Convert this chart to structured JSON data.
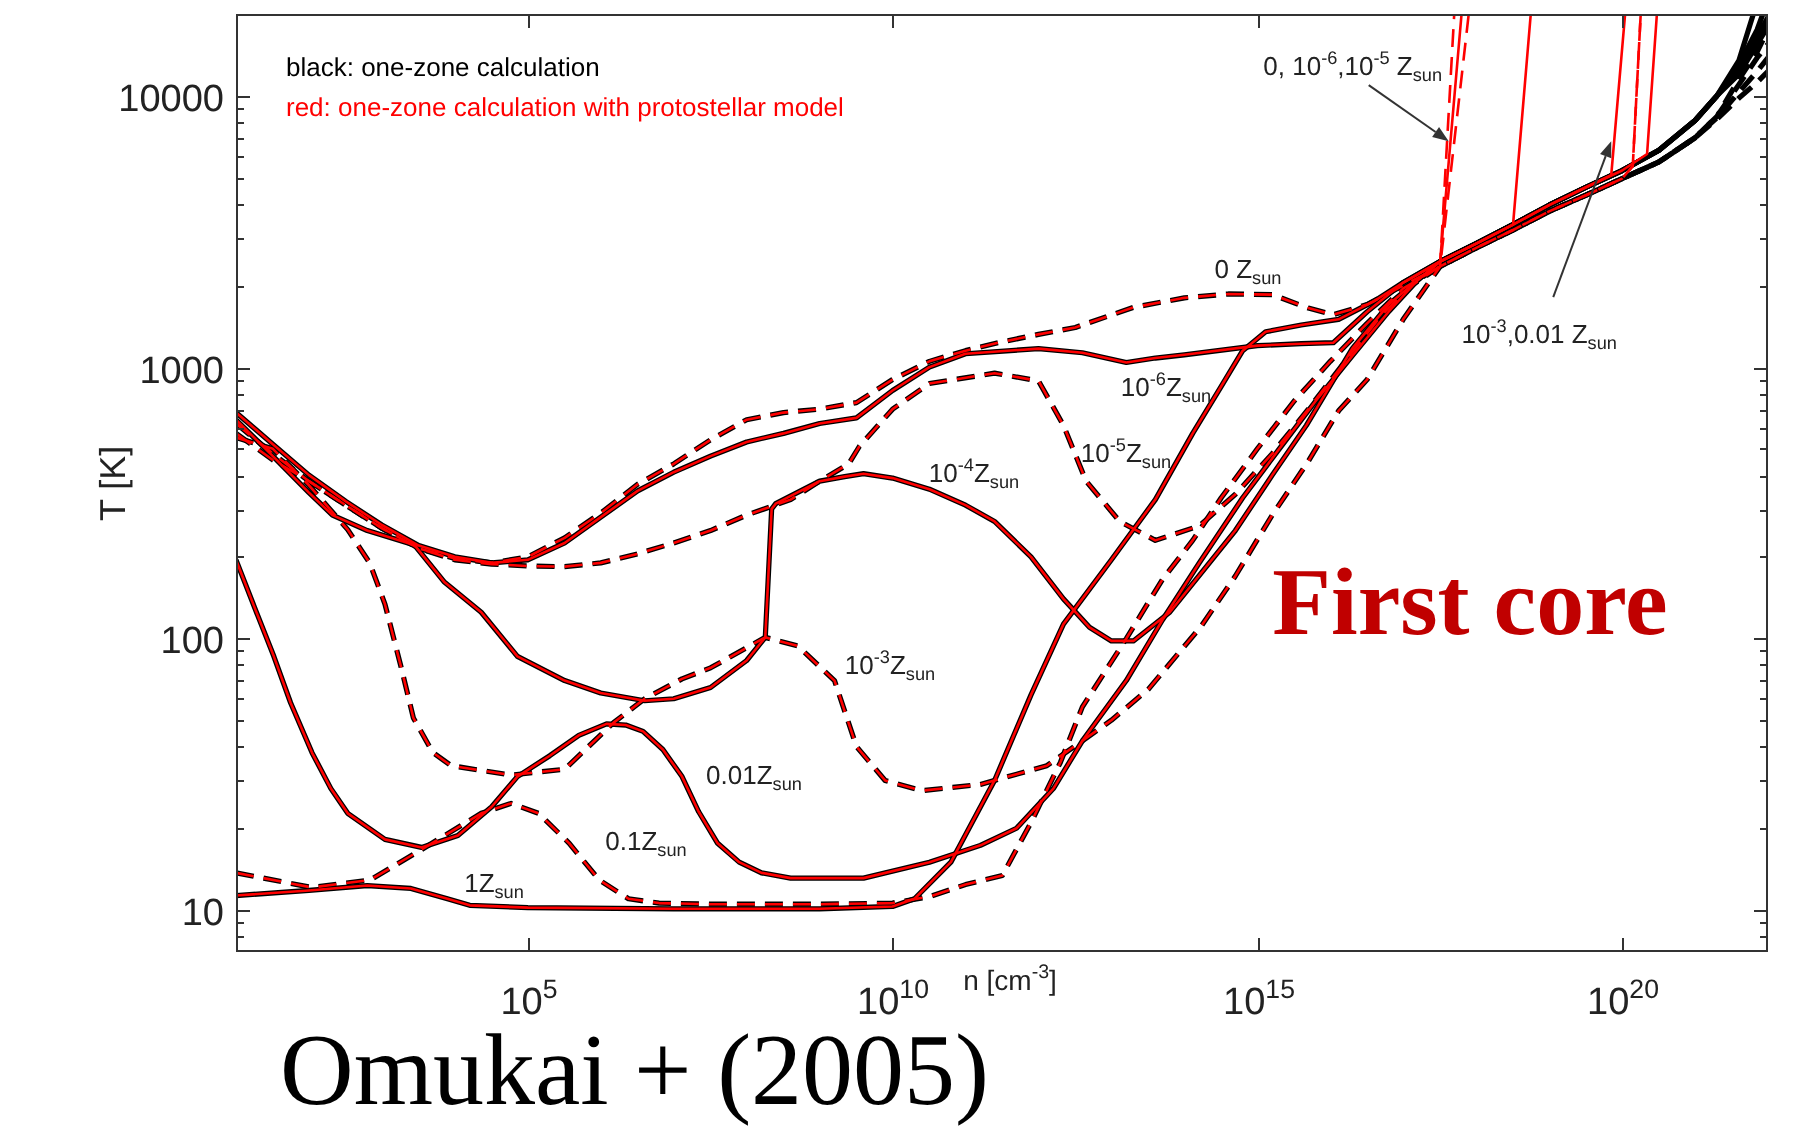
{
  "chart_data": {
    "type": "line",
    "xlabel": "n [cm$^{-3}$]",
    "ylabel": "T [K]",
    "log": "xy",
    "xlim": [
      10,
      1e+22
    ],
    "ylim": [
      7,
      20000
    ],
    "xticks": [
      {
        "value": 100000.0,
        "label": "10$^{5}$"
      },
      {
        "value": 10000000000.0,
        "label": "10$^{10}$"
      },
      {
        "value": 1000000000000000.0,
        "label": "10$^{15}$"
      },
      {
        "value": 1e+20,
        "label": "10$^{20}$"
      }
    ],
    "yticks": [
      {
        "value": 8,
        "label": null
      },
      {
        "value": 9,
        "label": null
      },
      10,
      {
        "value": 20,
        "label": null
      },
      {
        "value": 30,
        "label": null
      },
      {
        "value": 40,
        "label": null
      },
      {
        "value": 50,
        "label": null
      },
      {
        "value": 60,
        "label": null
      },
      {
        "value": 70,
        "label": null
      },
      {
        "value": 80,
        "label": null
      },
      {
        "value": 90,
        "label": null
      },
      100,
      {
        "value": 200,
        "label": null
      },
      {
        "value": 300,
        "label": null
      },
      {
        "value": 400,
        "label": null
      },
      {
        "value": 500,
        "label": null
      },
      {
        "value": 600,
        "label": null
      },
      {
        "value": 700,
        "label": null
      },
      {
        "value": 800,
        "label": null
      },
      {
        "value": 900,
        "label": null
      },
      1000,
      {
        "value": 2000,
        "label": null
      },
      {
        "value": 3000,
        "label": null
      },
      {
        "value": 4000,
        "label": null
      },
      {
        "value": 5000,
        "label": null
      },
      {
        "value": 6000,
        "label": null
      },
      {
        "value": 7000,
        "label": null
      },
      {
        "value": 8000,
        "label": null
      },
      {
        "value": 9000,
        "label": null
      },
      10000
    ],
    "series": [
      {
        "color": "#ff0000",
        "line_style": "dashed",
        "x": [
          10,
          32,
          100,
          320,
          1000,
          3200,
          10000,
          32000,
          100000,
          320000,
          1000000.0,
          3200000.0,
          10000000.0,
          32000000.0,
          100000000.0,
          320000000.0,
          1000000000.0,
          3200000000.0,
          10000000000.0,
          32000000000.0,
          100000000000.0,
          320000000000.0,
          1000000000000.0,
          3200000000000.0,
          20000000000000.0,
          100000000000000.0,
          400000000000000.0,
          1600000000000000.0,
          5000000000000000.0,
          1.1e+16,
          3.2e+16,
          1e+17,
          3.2e+17,
          5e+17
        ],
        "values": [
          620,
          480,
          380,
          310,
          255,
          215,
          197,
          190,
          200,
          235,
          290,
          370,
          440,
          540,
          640,
          680,
          700,
          740,
          900,
          1050,
          1150,
          1240,
          1320,
          1400,
          1660,
          1800,
          1860,
          1850,
          1650,
          1560,
          1700,
          2000,
          2350,
          20000
        ]
      },
      {
        "color": "#ff0000",
        "line_style": "solid",
        "x": [
          10,
          32,
          100,
          320,
          1000,
          3200,
          10000,
          32000,
          100000,
          320000,
          1000000.0,
          3200000.0,
          10000000.0,
          32000000.0,
          100000000.0,
          320000000.0,
          1000000000.0,
          3200000000.0,
          10000000000.0,
          32000000000.0,
          100000000000.0,
          1000000000000.0,
          4000000000000.0,
          16000000000000.0,
          40000000000000.0,
          100000000000000.0,
          1000000000000000.0,
          4000000000000000.0,
          1.1e+16,
          3.2e+16,
          1e+17,
          3.2e+17,
          6.3e+17
        ],
        "values": [
          680,
          520,
          400,
          320,
          262,
          220,
          200,
          190,
          195,
          225,
          280,
          350,
          410,
          470,
          530,
          570,
          620,
          650,
          820,
          1000,
          1120,
          1170,
          1130,
          1040,
          1080,
          1110,
          1200,
          1220,
          1230,
          1600,
          2050,
          2450,
          20000
        ]
      },
      {
        "color": "#ff0000",
        "line_style": "dashed",
        "x": [
          10,
          32,
          100,
          320,
          1000,
          3200,
          10000,
          32000,
          100000,
          320000,
          1000000.0,
          3200000.0,
          10000000.0,
          32000000.0,
          100000000.0,
          400000000.0,
          1000000000.0,
          2500000000.0,
          3500000000.0,
          10000000000.0,
          32000000000.0,
          250000000000.0,
          1000000000000.0,
          2200000000000.0,
          4500000000000.0,
          13000000000000.0,
          40000000000000.0,
          160000000000000.0,
          500000000000000.0,
          1600000000000000.0,
          5000000000000000.0,
          1.6e+16,
          5e+16,
          1.3e+17,
          3.2e+17,
          7.9e+17
        ],
        "values": [
          570,
          455,
          380,
          310,
          255,
          215,
          195,
          188,
          185,
          184,
          190,
          205,
          225,
          250,
          285,
          325,
          380,
          440,
          510,
          700,
          870,
          950,
          890,
          610,
          380,
          270,
          230,
          260,
          340,
          480,
          700,
          1050,
          1550,
          2000,
          2350,
          20000
        ]
      },
      {
        "color": "#ff0000",
        "line_style": "solid",
        "x": [
          10,
          32,
          100,
          210,
          630,
          2800,
          7100,
          23000,
          72000,
          320000,
          1000000.0,
          4000000.0,
          10000000.0,
          32000000.0,
          100000000.0,
          180000000.0,
          220000000.0,
          250000000.0,
          1000000000.0,
          2200000000.0,
          4000000000.0,
          10000000000.0,
          32000000000.0,
          100000000000.0,
          250000000000.0,
          790000000000.0,
          2200000000000.0,
          5000000000000.0,
          10000000000000.0,
          20000000000000.0,
          63000000000000.0,
          500000000000000.0,
          1600000000000000.0,
          4700000000000000.0,
          2e+16,
          6.3e+16,
          1.6e+17,
          3.2e+17,
          1e+18,
          3.2e+18,
          5.6e+18
        ],
        "values": [
          640,
          470,
          345,
          285,
          250,
          221,
          162,
          125,
          86,
          70,
          63,
          59,
          60,
          66,
          83,
          101,
          300,
          314,
          380,
          395,
          405,
          390,
          355,
          310,
          270,
          200,
          140,
          110,
          98,
          98,
          125,
          250,
          400,
          610,
          1170,
          1700,
          2100,
          2450,
          2850,
          3350,
          20000
        ]
      },
      {
        "color": "#ff0000",
        "line_style": "dashed",
        "x": [
          10,
          32,
          100,
          340,
          680,
          1100,
          1800,
          2700,
          5000,
          8900,
          59000,
          320000,
          1500000.0,
          4000000.0,
          13000000.0,
          32000000.0,
          180000000.0,
          500000000.0,
          1600000000.0,
          3200000000.0,
          7900000000.0,
          25000000000.0,
          160000000000.0,
          1300000000000.0,
          4000000000000.0,
          10000000000000.0,
          32000000000000.0,
          170000000000000.0,
          500000000000000.0,
          1600000000000000.0,
          5000000000000000.0,
          1.3e+16,
          3.2e+16,
          1e+17,
          3.2e+17,
          1e+18,
          3.2e+18,
          1e+19,
          3.2e+19,
          1e+20,
          1.4e+20,
          1.8e+20
        ],
        "values": [
          550,
          500,
          367,
          252,
          190,
          134,
          80,
          51,
          38,
          34,
          31.4,
          33,
          49,
          60,
          71,
          78,
          101,
          94,
          70,
          40,
          30,
          27.5,
          29,
          34,
          42,
          50,
          65,
          111,
          170,
          285,
          450,
          690,
          900,
          1500,
          2350,
          2750,
          3200,
          3750,
          4300,
          4950,
          5500,
          20000
        ]
      },
      {
        "color": "#ff0000",
        "line_style": "solid",
        "x": [
          10,
          18,
          33,
          56,
          110,
          200,
          340,
          1100,
          3500,
          11000,
          32000,
          72000,
          200000,
          500000,
          1200000.0,
          2200000.0,
          3800000.0,
          7100000.0,
          13000000.0,
          22000000.0,
          40000000.0,
          79000000.0,
          160000000.0,
          400000000.0,
          4000000000.0,
          32000000000.0,
          160000000000.0,
          500000000000.0,
          1600000000000.0,
          4000000000000.0,
          16000000000000.0,
          50000000000000.0,
          160000000000000.0,
          630000000000000.0,
          2000000000000000.0,
          6300000000000000.0,
          2e+16,
          6.3e+16,
          1.6e+17,
          3.2e+17,
          1e+18,
          3.2e+18,
          1e+19,
          3.2e+19,
          7.1e+19,
          1.1e+20
        ],
        "values": [
          195,
          130,
          86,
          58,
          38,
          28,
          22.7,
          18.2,
          17,
          18.8,
          24,
          31,
          37,
          44,
          48.5,
          48,
          45.5,
          39,
          31,
          23,
          17.6,
          15,
          13.7,
          13.1,
          13.1,
          15,
          17.3,
          20,
          28,
          42,
          70,
          117,
          190,
          330,
          500,
          750,
          1100,
          1600,
          2100,
          2450,
          2850,
          3350,
          3950,
          4600,
          5100,
          20000
        ]
      },
      {
        "color": "#ff0000",
        "line_style": "dashed",
        "x": [
          10,
          110,
          690,
          3500,
          23000,
          59000,
          140000,
          370000,
          950000,
          2400000.0,
          6300000.0,
          32000000.0,
          1000000000.0,
          10000000000.0,
          32000000000.0,
          100000000000.0,
          320000000000.0,
          790000000000.0,
          2000000000000.0,
          4000000000000.0,
          16000000000000.0,
          50000000000000.0,
          130000000000000.0,
          320000000000000.0,
          1000000000000000.0,
          3200000000000000.0,
          1e+16,
          3.2e+16,
          1e+17,
          3.2e+17,
          1e+18,
          3.2e+18,
          1e+19,
          3.2e+19,
          1e+20,
          1.4e+20,
          1.8e+20
        ],
        "values": [
          13.7,
          12.1,
          12.9,
          16.7,
          22.7,
          24.7,
          22.7,
          17.6,
          12.9,
          11,
          10.6,
          10.5,
          10.5,
          10.6,
          11.2,
          12.4,
          13.4,
          21,
          35,
          56,
          100,
          165,
          230,
          330,
          500,
          750,
          1050,
          1450,
          1950,
          2350,
          2750,
          3200,
          3750,
          4300,
          4950,
          5500,
          20000
        ]
      },
      {
        "color": "#ff0000",
        "line_style": "solid",
        "x": [
          10,
          100,
          630,
          2500,
          7900,
          16000,
          100000,
          10000000.0,
          1000000000.0,
          10000000000.0,
          20000000000.0,
          63000000000.0,
          250000000000.0,
          790000000000.0,
          2200000000000.0,
          10000000000000.0,
          40000000000000.0,
          130000000000000.0,
          320000000000000.0,
          630000000000000.0,
          1300000000000000.0,
          4000000000000000.0,
          1.3e+16,
          4e+16,
          1e+17,
          3.2e+17,
          1e+18,
          3.2e+18,
          1e+19,
          3.2e+19,
          1e+20,
          2.2e+20,
          3e+20
        ],
        "values": [
          11.3,
          11.8,
          12.3,
          12,
          11,
          10.4,
          10.2,
          10.1,
          10.1,
          10.3,
          11,
          15,
          30,
          62,
          113,
          195,
          325,
          570,
          850,
          1150,
          1350,
          1430,
          1500,
          1750,
          2050,
          2450,
          2850,
          3350,
          3950,
          4600,
          5300,
          6100,
          20000
        ]
      },
      {
        "color": "#000000",
        "line_style": "dashed",
        "x": [
          10,
          32,
          100,
          320,
          1000,
          3200,
          10000,
          32000,
          100000,
          320000,
          1000000.0,
          3200000.0,
          10000000.0,
          32000000.0,
          100000000.0,
          320000000.0,
          1000000000.0,
          3200000000.0,
          10000000000.0,
          32000000000.0,
          100000000000.0,
          320000000000.0,
          1000000000000.0,
          3200000000000.0,
          20000000000000.0,
          100000000000000.0,
          400000000000000.0,
          1600000000000000.0,
          5000000000000000.0,
          1.1e+16,
          3.2e+16,
          1e+17,
          3.2e+17,
          1e+18,
          3.2e+18,
          1e+19,
          3.2e+19,
          1e+20,
          3.2e+20,
          1e+21,
          2e+21,
          4e+21,
          7.1e+21,
          1e+22
        ],
        "values": [
          620,
          480,
          380,
          310,
          255,
          215,
          197,
          190,
          200,
          235,
          290,
          370,
          440,
          540,
          640,
          680,
          700,
          740,
          900,
          1050,
          1150,
          1240,
          1320,
          1400,
          1660,
          1800,
          1860,
          1850,
          1650,
          1560,
          1700,
          2000,
          2350,
          2750,
          3200,
          3750,
          4300,
          4950,
          5700,
          7000,
          8400,
          11500,
          14500,
          17500
        ]
      },
      {
        "color": "#000000",
        "line_style": "solid",
        "x": [
          10,
          32,
          100,
          320,
          1000,
          3200,
          10000,
          32000,
          100000,
          320000,
          1000000.0,
          3200000.0,
          10000000.0,
          32000000.0,
          100000000.0,
          320000000.0,
          1000000000.0,
          3200000000.0,
          10000000000.0,
          32000000000.0,
          100000000000.0,
          1000000000000.0,
          4000000000000.0,
          16000000000000.0,
          40000000000000.0,
          100000000000000.0,
          1000000000000000.0,
          4000000000000000.0,
          1.1e+16,
          3.2e+16,
          1e+17,
          3.2e+17,
          1e+18,
          3.2e+18,
          1e+19,
          3.2e+19,
          1e+20,
          3.2e+20,
          1e+21,
          2e+21,
          4e+21,
          6.3e+21
        ],
        "values": [
          680,
          520,
          400,
          320,
          262,
          220,
          200,
          190,
          195,
          225,
          280,
          350,
          410,
          470,
          530,
          570,
          620,
          650,
          820,
          1000,
          1120,
          1170,
          1130,
          1040,
          1080,
          1110,
          1200,
          1220,
          1230,
          1600,
          2050,
          2450,
          2850,
          3350,
          3950,
          4600,
          5300,
          6300,
          8100,
          10000,
          13500,
          20000
        ]
      },
      {
        "color": "#000000",
        "line_style": "dashed",
        "x": [
          10,
          32,
          100,
          320,
          1000,
          3200,
          10000,
          32000,
          100000,
          320000,
          1000000.0,
          3200000.0,
          10000000.0,
          32000000.0,
          100000000.0,
          400000000.0,
          1000000000.0,
          2500000000.0,
          3500000000.0,
          10000000000.0,
          32000000000.0,
          250000000000.0,
          1000000000000.0,
          2200000000000.0,
          4500000000000.0,
          13000000000000.0,
          40000000000000.0,
          160000000000000.0,
          500000000000000.0,
          1600000000000000.0,
          5000000000000000.0,
          1.6e+16,
          5e+16,
          1.3e+17,
          3.2e+17,
          1e+18,
          3.2e+18,
          1e+19,
          3.2e+19,
          1e+20,
          3.2e+20,
          1e+21,
          2e+21,
          4e+21,
          7.1e+21,
          1e+22
        ],
        "values": [
          570,
          455,
          380,
          310,
          255,
          215,
          195,
          188,
          185,
          184,
          190,
          205,
          225,
          250,
          285,
          325,
          380,
          440,
          510,
          700,
          870,
          950,
          890,
          610,
          380,
          270,
          230,
          260,
          340,
          480,
          700,
          1050,
          1550,
          2000,
          2350,
          2750,
          3200,
          3750,
          4300,
          4950,
          5700,
          7000,
          8400,
          11000,
          13800,
          15500
        ]
      },
      {
        "color": "#000000",
        "line_style": "solid",
        "x": [
          10,
          32,
          100,
          210,
          630,
          2800,
          7100,
          23000,
          72000,
          320000,
          1000000.0,
          4000000.0,
          10000000.0,
          32000000.0,
          100000000.0,
          180000000.0,
          220000000.0,
          250000000.0,
          1000000000.0,
          2200000000.0,
          4000000000.0,
          10000000000.0,
          32000000000.0,
          100000000000.0,
          250000000000.0,
          790000000000.0,
          2200000000000.0,
          5000000000000.0,
          10000000000000.0,
          20000000000000.0,
          63000000000000.0,
          500000000000000.0,
          1600000000000000.0,
          4700000000000000.0,
          2e+16,
          6.3e+16,
          1.6e+17,
          3.2e+17,
          1e+18,
          3.2e+18,
          1e+19,
          3.2e+19,
          1e+20,
          3.2e+20,
          1e+21,
          2e+21,
          4e+21,
          7.1e+21,
          8.5e+21
        ],
        "values": [
          640,
          470,
          345,
          285,
          250,
          221,
          162,
          125,
          86,
          70,
          63,
          59,
          60,
          66,
          83,
          101,
          300,
          314,
          380,
          395,
          405,
          390,
          355,
          310,
          270,
          200,
          140,
          110,
          98,
          98,
          125,
          250,
          400,
          610,
          1170,
          1700,
          2100,
          2450,
          2850,
          3350,
          3950,
          4600,
          5300,
          6300,
          8100,
          10000,
          13000,
          17500,
          20000
        ]
      },
      {
        "color": "#000000",
        "line_style": "dashed",
        "x": [
          10,
          32,
          100,
          340,
          680,
          1100,
          1800,
          2700,
          5000,
          8900,
          59000,
          320000,
          1500000.0,
          4000000.0,
          13000000.0,
          32000000.0,
          180000000.0,
          500000000.0,
          1600000000.0,
          3200000000.0,
          7900000000.0,
          25000000000.0,
          160000000000.0,
          1300000000000.0,
          4000000000000.0,
          10000000000000.0,
          32000000000000.0,
          170000000000000.0,
          500000000000000.0,
          1600000000000000.0,
          5000000000000000.0,
          1.3e+16,
          3.2e+16,
          1e+17,
          3.2e+17,
          1e+18,
          3.2e+18,
          1e+19,
          3.2e+19,
          1e+20,
          3.2e+20,
          1e+21,
          2e+21,
          4e+21,
          7.1e+21,
          1e+22
        ],
        "values": [
          550,
          500,
          367,
          252,
          190,
          134,
          80,
          51,
          38,
          34,
          31.4,
          33,
          49,
          60,
          71,
          78,
          101,
          94,
          70,
          40,
          30,
          27.5,
          29,
          34,
          42,
          50,
          65,
          111,
          170,
          285,
          450,
          690,
          900,
          1500,
          2350,
          2750,
          3200,
          3750,
          4300,
          4950,
          5700,
          7000,
          8300,
          10300,
          12300,
          13800
        ]
      },
      {
        "color": "#000000",
        "line_style": "solid",
        "x": [
          10,
          18,
          33,
          56,
          110,
          200,
          340,
          1100,
          3500,
          11000,
          32000,
          72000,
          200000,
          500000,
          1200000.0,
          2200000.0,
          3800000.0,
          7100000.0,
          13000000.0,
          22000000.0,
          40000000.0,
          79000000.0,
          160000000.0,
          400000000.0,
          4000000000.0,
          32000000000.0,
          160000000000.0,
          500000000000.0,
          1600000000000.0,
          4000000000000.0,
          16000000000000.0,
          50000000000000.0,
          160000000000000.0,
          630000000000000.0,
          2000000000000000.0,
          6300000000000000.0,
          2e+16,
          6.3e+16,
          1.6e+17,
          3.2e+17,
          1e+18,
          3.2e+18,
          1e+19,
          3.2e+19,
          1e+20,
          3.2e+20,
          1e+21,
          2e+21,
          4e+21,
          7.1e+21,
          1e+22
        ],
        "values": [
          195,
          130,
          86,
          58,
          38,
          28,
          22.7,
          18.2,
          17,
          18.8,
          24,
          31,
          37,
          44,
          48.5,
          48,
          45.5,
          39,
          31,
          23,
          17.6,
          15,
          13.7,
          13.1,
          13.1,
          15,
          17.3,
          20,
          28,
          42,
          70,
          117,
          190,
          330,
          500,
          750,
          1100,
          1600,
          2100,
          2450,
          2850,
          3350,
          3950,
          4600,
          5300,
          6300,
          8100,
          10000,
          12500,
          16500,
          19500
        ]
      },
      {
        "color": "#000000",
        "line_style": "dashed",
        "x": [
          10,
          110,
          690,
          3500,
          23000,
          59000,
          140000,
          370000,
          950000,
          2400000.0,
          6300000.0,
          32000000.0,
          1000000000.0,
          10000000000.0,
          32000000000.0,
          100000000000.0,
          320000000000.0,
          790000000000.0,
          2000000000000.0,
          4000000000000.0,
          16000000000000.0,
          50000000000000.0,
          130000000000000.0,
          320000000000000.0,
          1000000000000000.0,
          3200000000000000.0,
          1e+16,
          3.2e+16,
          1e+17,
          3.2e+17,
          1e+18,
          3.2e+18,
          1e+19,
          3.2e+19,
          1e+20,
          3.2e+20,
          1e+21,
          2e+21,
          4e+21,
          7.1e+21,
          1e+22
        ],
        "values": [
          13.7,
          12.1,
          12.9,
          16.7,
          22.7,
          24.7,
          22.7,
          17.6,
          12.9,
          11,
          10.6,
          10.5,
          10.5,
          10.6,
          11.2,
          12.4,
          13.4,
          21,
          35,
          56,
          100,
          165,
          230,
          330,
          500,
          750,
          1050,
          1450,
          1950,
          2350,
          2750,
          3200,
          3750,
          4300,
          4950,
          5700,
          7000,
          8200,
          9800,
          11200,
          12300
        ]
      },
      {
        "color": "#000000",
        "line_style": "solid",
        "x": [
          10,
          100,
          630,
          2500,
          7900,
          16000,
          100000,
          10000000.0,
          1000000000.0,
          10000000000.0,
          20000000000.0,
          63000000000.0,
          250000000000.0,
          790000000000.0,
          2200000000000.0,
          10000000000000.0,
          40000000000000.0,
          130000000000000.0,
          320000000000000.0,
          630000000000000.0,
          1300000000000000.0,
          4000000000000000.0,
          1.3e+16,
          4e+16,
          1e+17,
          3.2e+17,
          1e+18,
          3.2e+18,
          1e+19,
          3.2e+19,
          1e+20,
          3.2e+20,
          1e+21,
          2e+21,
          4e+21,
          7.1e+21,
          1e+22
        ],
        "values": [
          11.3,
          11.8,
          12.3,
          12,
          11,
          10.4,
          10.2,
          10.1,
          10.1,
          10.3,
          11,
          15,
          30,
          62,
          113,
          195,
          325,
          570,
          850,
          1150,
          1350,
          1430,
          1500,
          1750,
          2050,
          2450,
          2850,
          3350,
          3950,
          4600,
          5300,
          6300,
          8100,
          10000,
          12000,
          15500,
          18000
        ]
      }
    ],
    "annotations": [
      "black: one-zone calculation",
      "red: one-zone calculation with protostellar model",
      "0 Z$_{sun}$",
      "10$^{-6}$Z$_{sun}$",
      "10$^{-5}$Z$_{sun}$",
      "10$^{-4}$Z$_{sun}$",
      "10$^{-3}$Z$_{sun}$",
      "0.01Z$_{sun}$",
      "0.1Z$_{sun}$",
      "1Z$_{sun}$",
      {
        "text": "0, 10$^{-6}$,10$^{-5}$ Z$_{sun}$",
        "x": 4.2e+17,
        "y": 6800
      },
      {
        "text": "10$^{-3}$,0.01 Z$_{sun}$",
        "x": 7.1e+19,
        "y": 6800
      },
      "First core",
      "Omukai + (2005)"
    ]
  }
}
